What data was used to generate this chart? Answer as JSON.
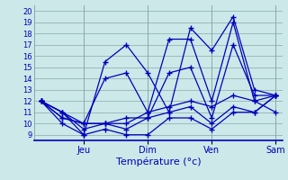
{
  "background_color": "#cce8e8",
  "grid_color": "#88aaaa",
  "line_color": "#0000bb",
  "xlabel": "Température (°c)",
  "xlabel_color": "#0000bb",
  "tick_label_color": "#0000bb",
  "ylim": [
    8.5,
    20.5
  ],
  "yticks": [
    9,
    10,
    11,
    12,
    13,
    14,
    15,
    16,
    17,
    18,
    19,
    20
  ],
  "xtick_labels": [
    "Jeu",
    "Dim",
    "Ven",
    "Sam"
  ],
  "series": [
    [
      12.0,
      11.0,
      9.0,
      15.5,
      17.0,
      14.5,
      11.0,
      18.5,
      16.5,
      19.5,
      13.0,
      12.5
    ],
    [
      12.0,
      11.0,
      10.0,
      14.0,
      14.5,
      11.0,
      17.5,
      17.5,
      12.0,
      19.0,
      12.0,
      11.0
    ],
    [
      12.0,
      11.0,
      9.5,
      10.0,
      10.5,
      10.5,
      14.5,
      15.0,
      10.5,
      17.0,
      12.5,
      12.5
    ],
    [
      12.0,
      10.5,
      10.0,
      10.0,
      10.0,
      11.0,
      11.5,
      12.0,
      11.5,
      12.5,
      12.0,
      12.5
    ],
    [
      12.0,
      10.5,
      10.0,
      10.0,
      9.5,
      10.5,
      11.0,
      11.5,
      10.0,
      11.5,
      11.0,
      12.5
    ],
    [
      12.0,
      10.0,
      9.0,
      9.5,
      9.0,
      9.0,
      10.5,
      10.5,
      9.5,
      11.0,
      11.0,
      12.5
    ]
  ],
  "n_points": 12,
  "vline_positions": [
    2,
    5,
    8,
    11
  ],
  "xtick_positions": [
    2,
    5,
    8,
    11
  ]
}
